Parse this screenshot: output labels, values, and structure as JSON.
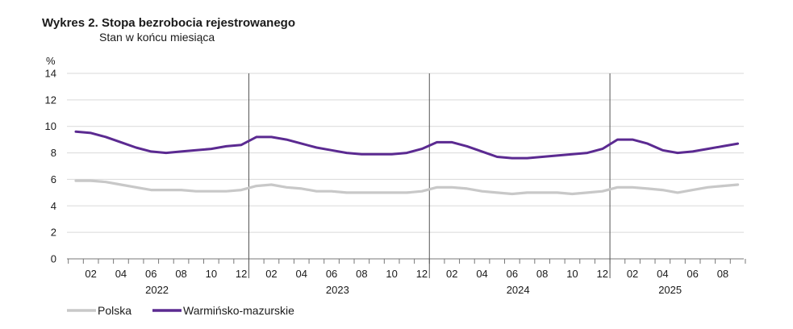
{
  "chart_data": {
    "type": "line",
    "title": "Wykres 2. Stopa bezrobocia rejestrowanego",
    "subtitle": "Stan w końcu miesiąca",
    "ylabel": "%",
    "ylim": [
      0,
      14
    ],
    "yticks": [
      0,
      2,
      4,
      6,
      8,
      10,
      12,
      14
    ],
    "grid": true,
    "x_tick_labels": [
      "02",
      "04",
      "06",
      "08",
      "10",
      "12",
      "02",
      "04",
      "06",
      "08",
      "10",
      "12",
      "02",
      "04",
      "06",
      "08",
      "10",
      "12",
      "02",
      "04",
      "06",
      "08"
    ],
    "years": [
      "2022",
      "2023",
      "2024",
      "2025"
    ],
    "months_per_year": [
      12,
      12,
      12,
      9
    ],
    "legend_position": "bottom-left",
    "series": [
      {
        "name": "Polska",
        "color": "#c8c8c8",
        "values": [
          5.9,
          5.9,
          5.8,
          5.6,
          5.4,
          5.2,
          5.2,
          5.2,
          5.1,
          5.1,
          5.1,
          5.2,
          5.5,
          5.6,
          5.4,
          5.3,
          5.1,
          5.1,
          5.0,
          5.0,
          5.0,
          5.0,
          5.0,
          5.1,
          5.4,
          5.4,
          5.3,
          5.1,
          5.0,
          4.9,
          5.0,
          5.0,
          5.0,
          4.9,
          5.0,
          5.1,
          5.4,
          5.4,
          5.3,
          5.2,
          5.0,
          5.2,
          5.4,
          5.5,
          5.6
        ]
      },
      {
        "name": "Warmińsko-mazurskie",
        "color": "#5b2a91",
        "values": [
          9.6,
          9.5,
          9.2,
          8.8,
          8.4,
          8.1,
          8.0,
          8.1,
          8.2,
          8.3,
          8.5,
          8.6,
          9.2,
          9.2,
          9.0,
          8.7,
          8.4,
          8.2,
          8.0,
          7.9,
          7.9,
          7.9,
          8.0,
          8.3,
          8.8,
          8.8,
          8.5,
          8.1,
          7.7,
          7.6,
          7.6,
          7.7,
          7.8,
          7.9,
          8.0,
          8.3,
          9.0,
          9.0,
          8.7,
          8.2,
          8.0,
          8.1,
          8.3,
          8.5,
          8.7
        ]
      }
    ]
  }
}
